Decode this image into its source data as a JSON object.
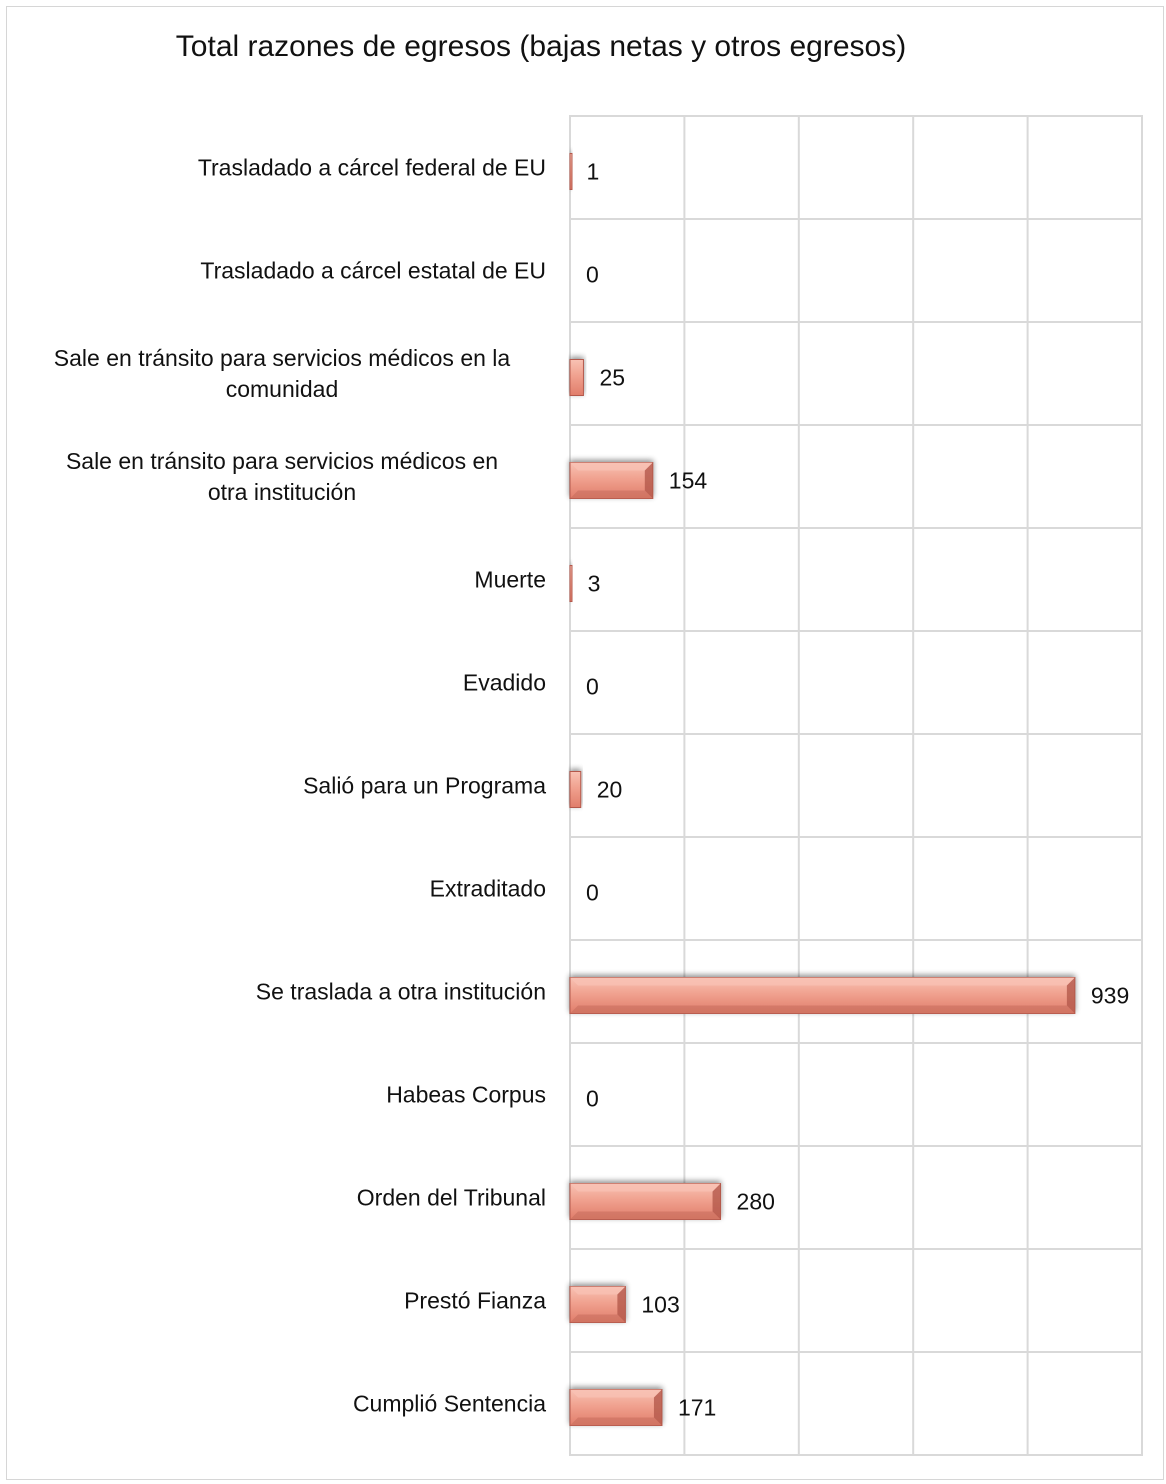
{
  "chart_data": {
    "type": "bar",
    "orientation": "horizontal",
    "title": "Total razones de egresos (bajas netas y otros egresos)",
    "categories": [
      [
        "Trasladado a cárcel federal de EU"
      ],
      [
        "Trasladado a cárcel estatal de EU"
      ],
      [
        "Sale en tránsito para servicios médicos en la",
        "comunidad"
      ],
      [
        "Sale en tránsito para servicios médicos en",
        "otra institución"
      ],
      [
        "Muerte"
      ],
      [
        "Evadido"
      ],
      [
        "Salió para un Programa"
      ],
      [
        "Extraditado"
      ],
      [
        "Se traslada a otra institución"
      ],
      [
        "Habeas Corpus"
      ],
      [
        "Orden del Tribunal"
      ],
      [
        "Prestó Fianza"
      ],
      [
        "Cumplió Sentencia"
      ]
    ],
    "values": [
      1,
      0,
      25,
      154,
      3,
      0,
      20,
      0,
      939,
      0,
      280,
      103,
      171
    ],
    "data_labels": [
      "1",
      "0",
      "25",
      "154",
      "3",
      "0",
      "20",
      "0",
      "939",
      "0",
      "280",
      "103",
      "171"
    ],
    "xlim": [
      0,
      1000
    ],
    "grid": true,
    "bar_color": "#e98a78",
    "bar_highlight": "#f8c2b4",
    "bar_shadow": "#b4594b",
    "grid_color": "#d9d9d9"
  }
}
